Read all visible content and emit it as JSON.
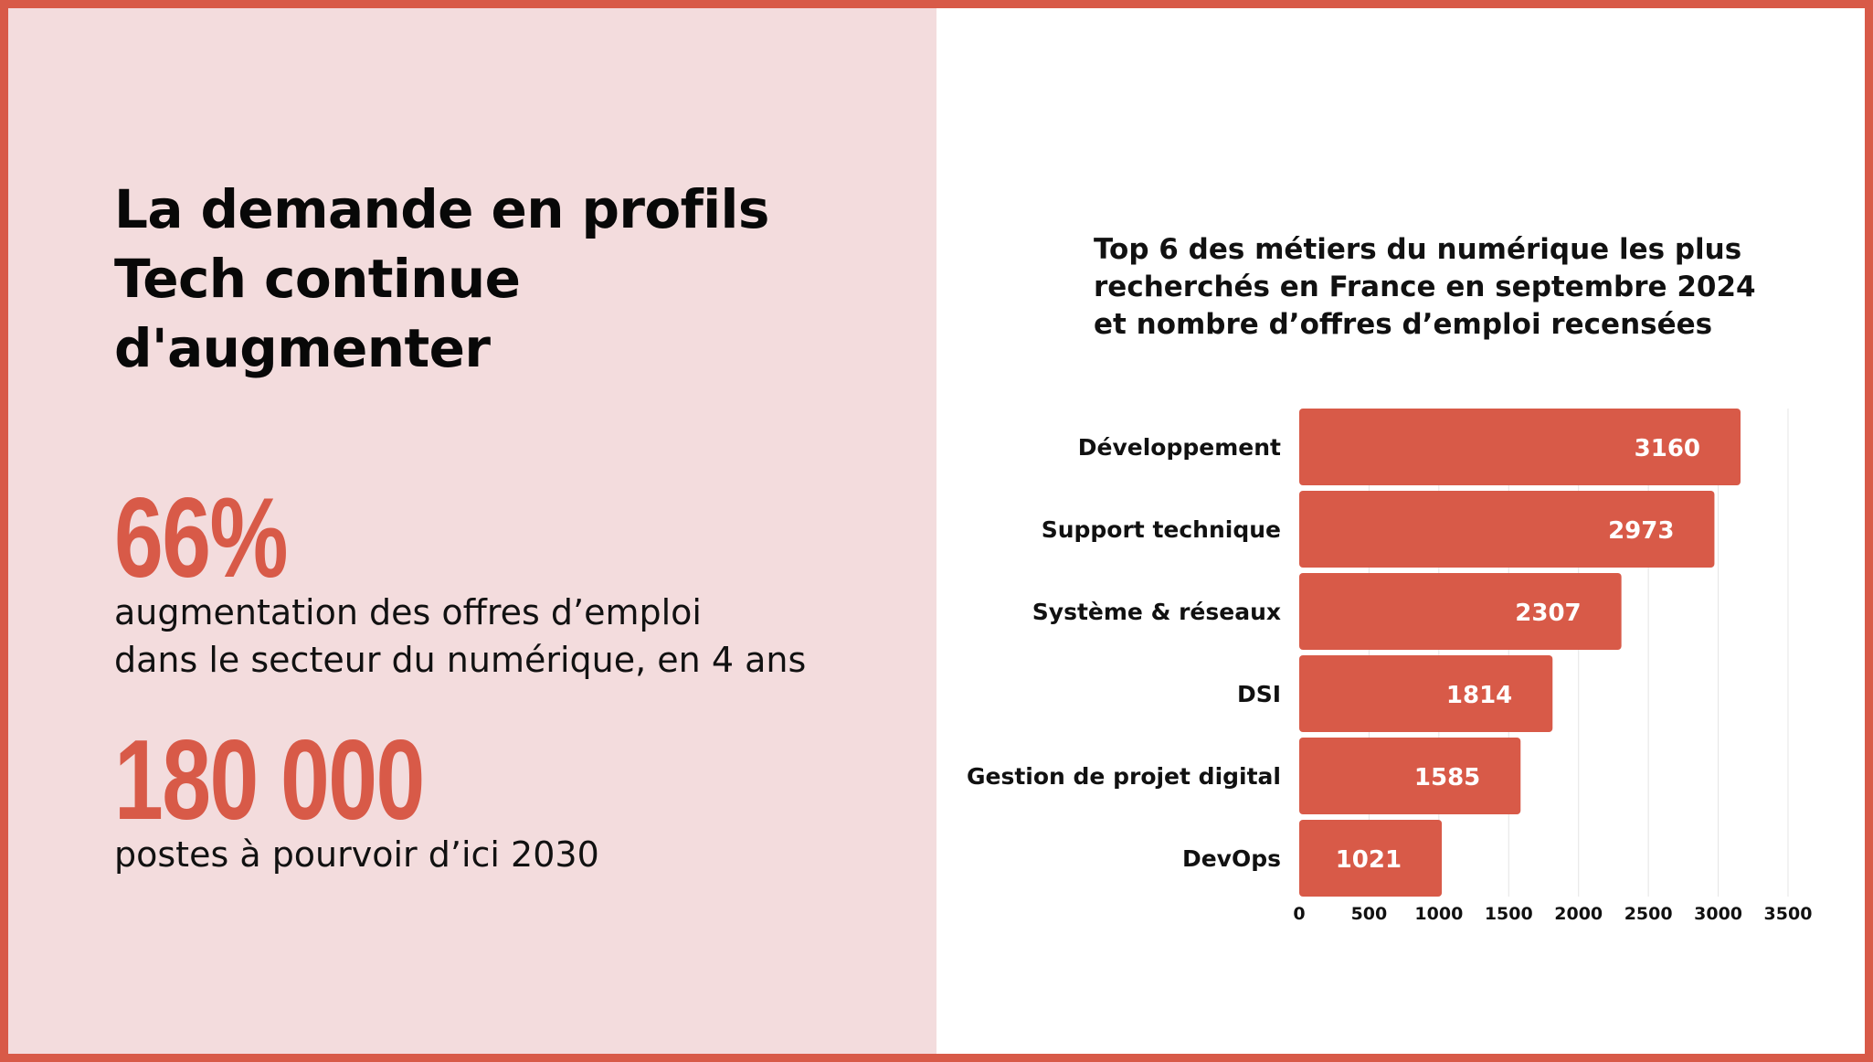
{
  "left": {
    "headline": "La demande en profils\nTech continue\nd'augmenter",
    "stats": [
      {
        "value": "66%",
        "label": "augmentation des offres d’emploi\ndans le secteur du numérique, en 4 ans"
      },
      {
        "value": "180 000",
        "label": "postes à pourvoir d’ici 2030"
      }
    ]
  },
  "colors": {
    "accent": "#d85a48",
    "left_background": "#f3dcdd",
    "frame": "#d85a48",
    "grid": "#e4e4e4"
  },
  "chart_data": {
    "type": "bar",
    "orientation": "horizontal",
    "title": "Top 6 des métiers du numérique les plus\nrecherchés en France en septembre 2024\net nombre d’offres d’emploi recensées",
    "xlabel": "",
    "ylabel": "",
    "categories": [
      "Développement",
      "Support technique",
      "Système & réseaux",
      "DSI",
      "Gestion de projet digital",
      "DevOps"
    ],
    "values": [
      3160,
      2973,
      2307,
      1814,
      1585,
      1021
    ],
    "xlim": [
      0,
      3500
    ],
    "xticks": [
      0,
      500,
      1000,
      1500,
      2000,
      2500,
      3000,
      3500
    ],
    "grid": "vertical",
    "bar_color": "#d85a48",
    "data_labels": true
  }
}
